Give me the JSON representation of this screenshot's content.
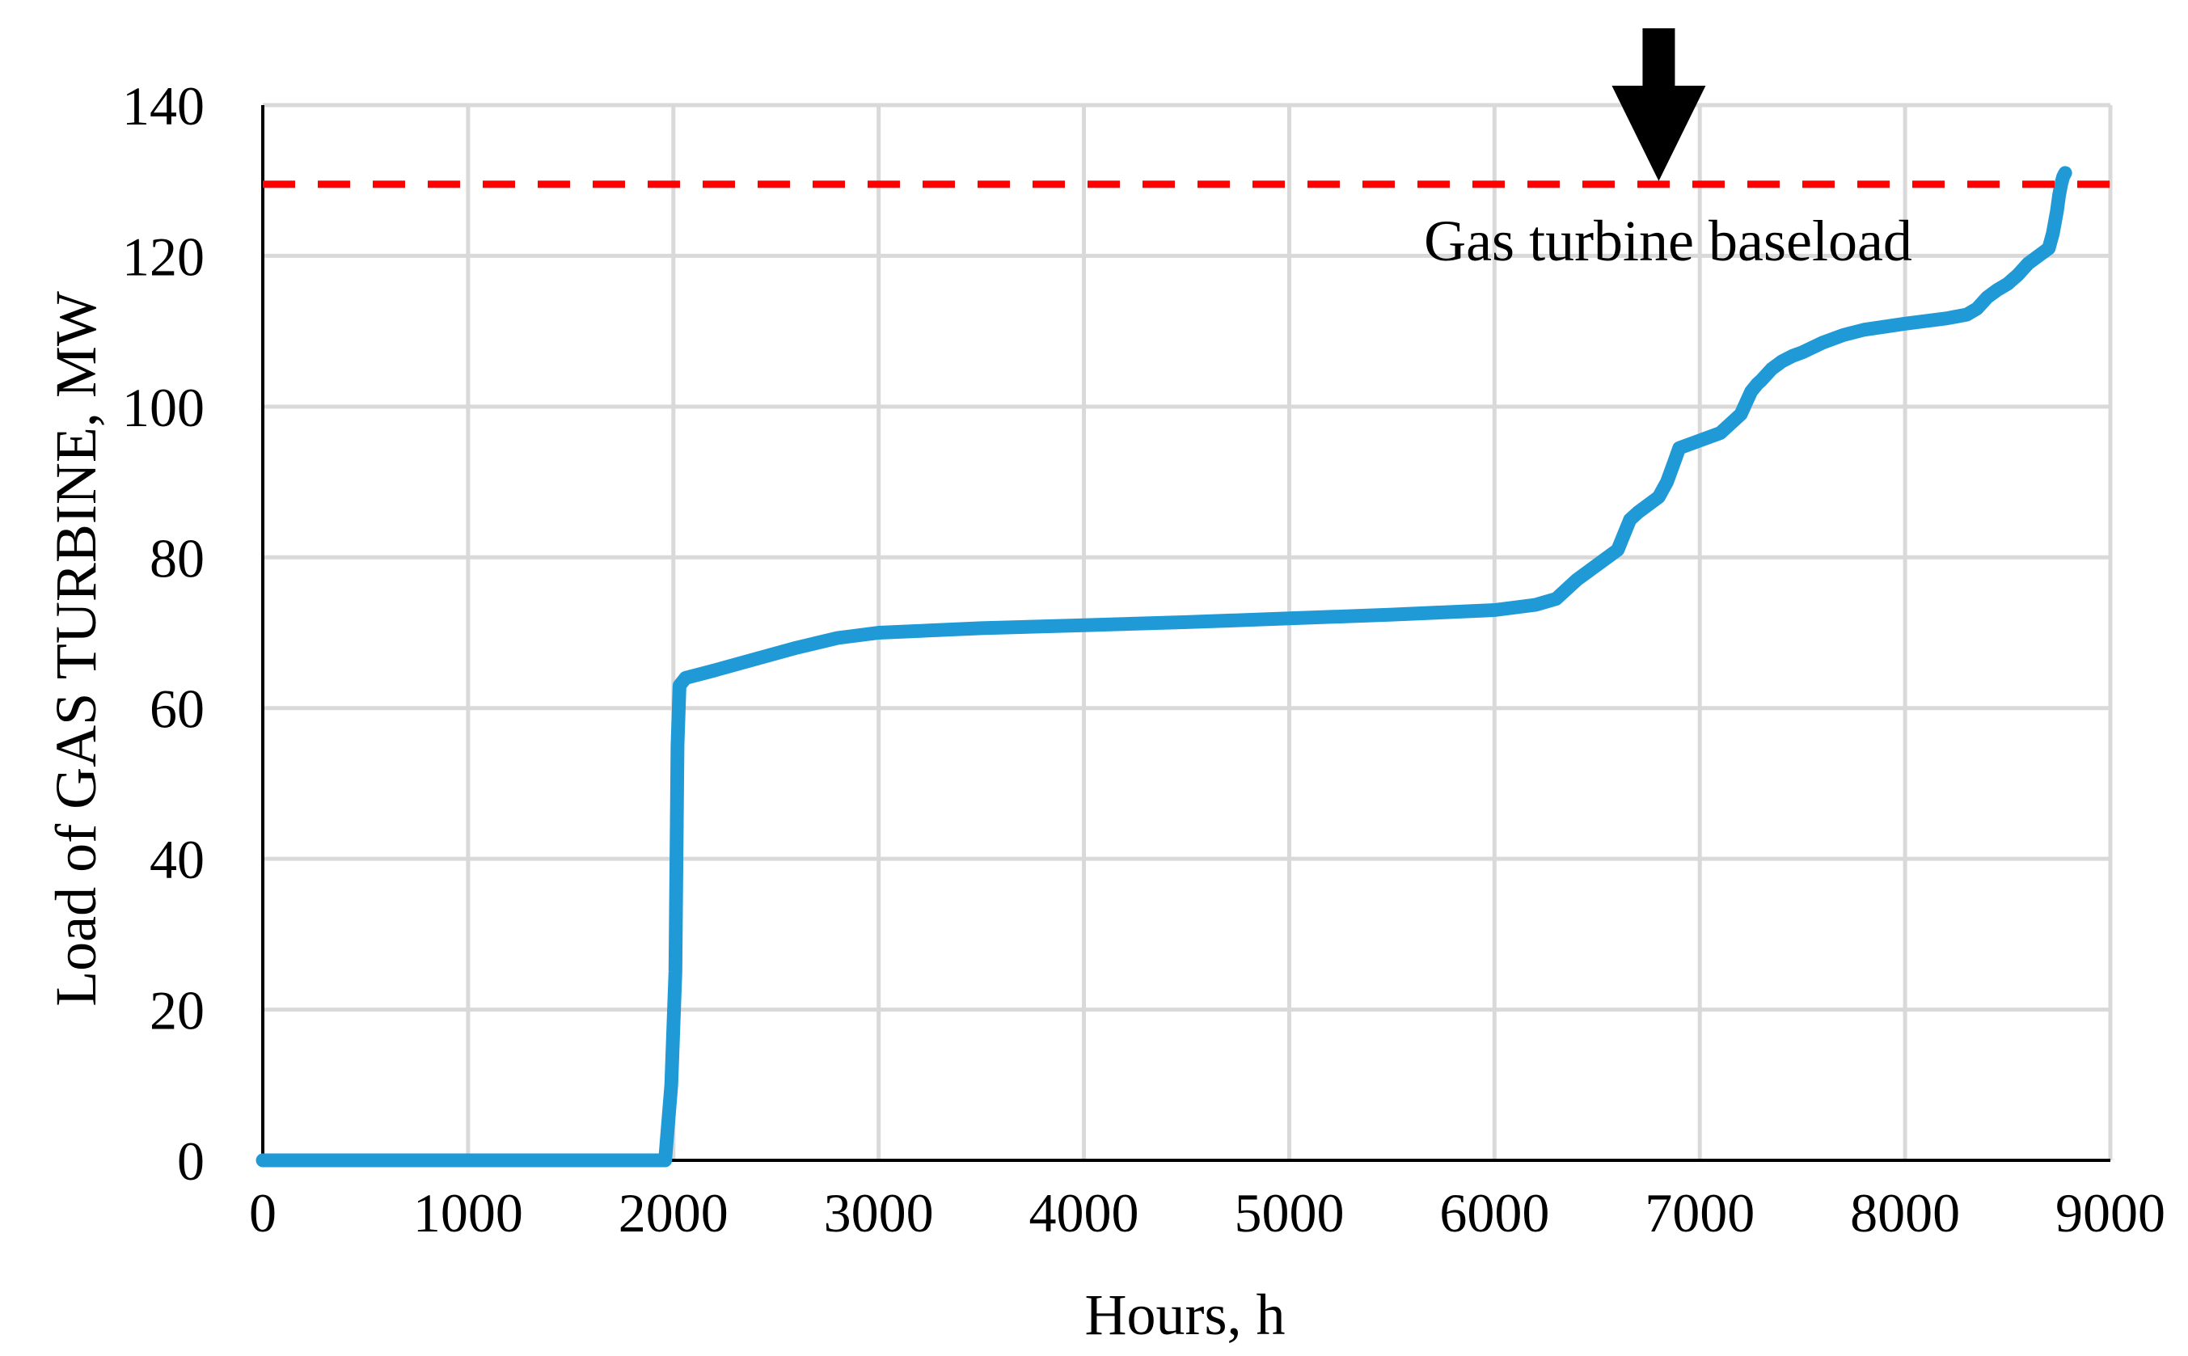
{
  "chart_data": {
    "type": "line",
    "title": "",
    "xlabel": "Hours, h",
    "ylabel": "Load of GAS TURBINE, MW",
    "xlim": [
      0,
      9000
    ],
    "ylim": [
      0,
      140
    ],
    "xticks": [
      0,
      1000,
      2000,
      3000,
      4000,
      5000,
      6000,
      7000,
      8000,
      9000
    ],
    "yticks": [
      0,
      20,
      40,
      60,
      80,
      100,
      120,
      140
    ],
    "xtick_labels": [
      "0",
      "1000",
      "2000",
      "3000",
      "4000",
      "5000",
      "6000",
      "7000",
      "8000",
      "9000"
    ],
    "ytick_labels": [
      "0",
      "20",
      "40",
      "60",
      "80",
      "100",
      "120",
      "140"
    ],
    "grid": true,
    "series": [
      {
        "name": "Load of gas turbine",
        "color": "#1f9ad6",
        "x": [
          0,
          1960,
          1990,
          2010,
          2020,
          2030,
          2060,
          2200,
          2400,
          2600,
          2800,
          3000,
          3500,
          4000,
          4500,
          5000,
          5500,
          6000,
          6200,
          6300,
          6400,
          6500,
          6600,
          6630,
          6660,
          6700,
          6800,
          6840,
          6880,
          6900,
          7000,
          7100,
          7200,
          7250,
          7280,
          7300,
          7350,
          7400,
          7450,
          7500,
          7600,
          7700,
          7800,
          8000,
          8200,
          8300,
          8350,
          8400,
          8450,
          8500,
          8550,
          8600,
          8650,
          8700,
          8720,
          8740,
          8750,
          8760,
          8770,
          8780
        ],
        "values": [
          0,
          0,
          10,
          25,
          55,
          63,
          64,
          65,
          66.5,
          68,
          69.3,
          70,
          70.6,
          71,
          71.4,
          71.9,
          72.4,
          73,
          73.7,
          74.5,
          77,
          79,
          81,
          83,
          85,
          86,
          88,
          90,
          93,
          94.5,
          95.5,
          96.5,
          99,
          102,
          103,
          103.5,
          105,
          106,
          106.7,
          107.2,
          108.5,
          109.5,
          110.2,
          111,
          111.7,
          112.2,
          113,
          114.5,
          115.5,
          116.3,
          117.5,
          119,
          120,
          121,
          123,
          126,
          128,
          129.5,
          130.5,
          131
        ]
      }
    ],
    "reference_lines": [
      {
        "name": "Gas turbine baseload",
        "orientation": "horizontal",
        "value": 129.5,
        "color": "#ff0000",
        "style": "dashed"
      }
    ],
    "annotations": [
      {
        "text": "Gas turbine baseload",
        "arrow": "down",
        "arrow_x": 6800,
        "arrow_color": "#000000"
      }
    ]
  }
}
